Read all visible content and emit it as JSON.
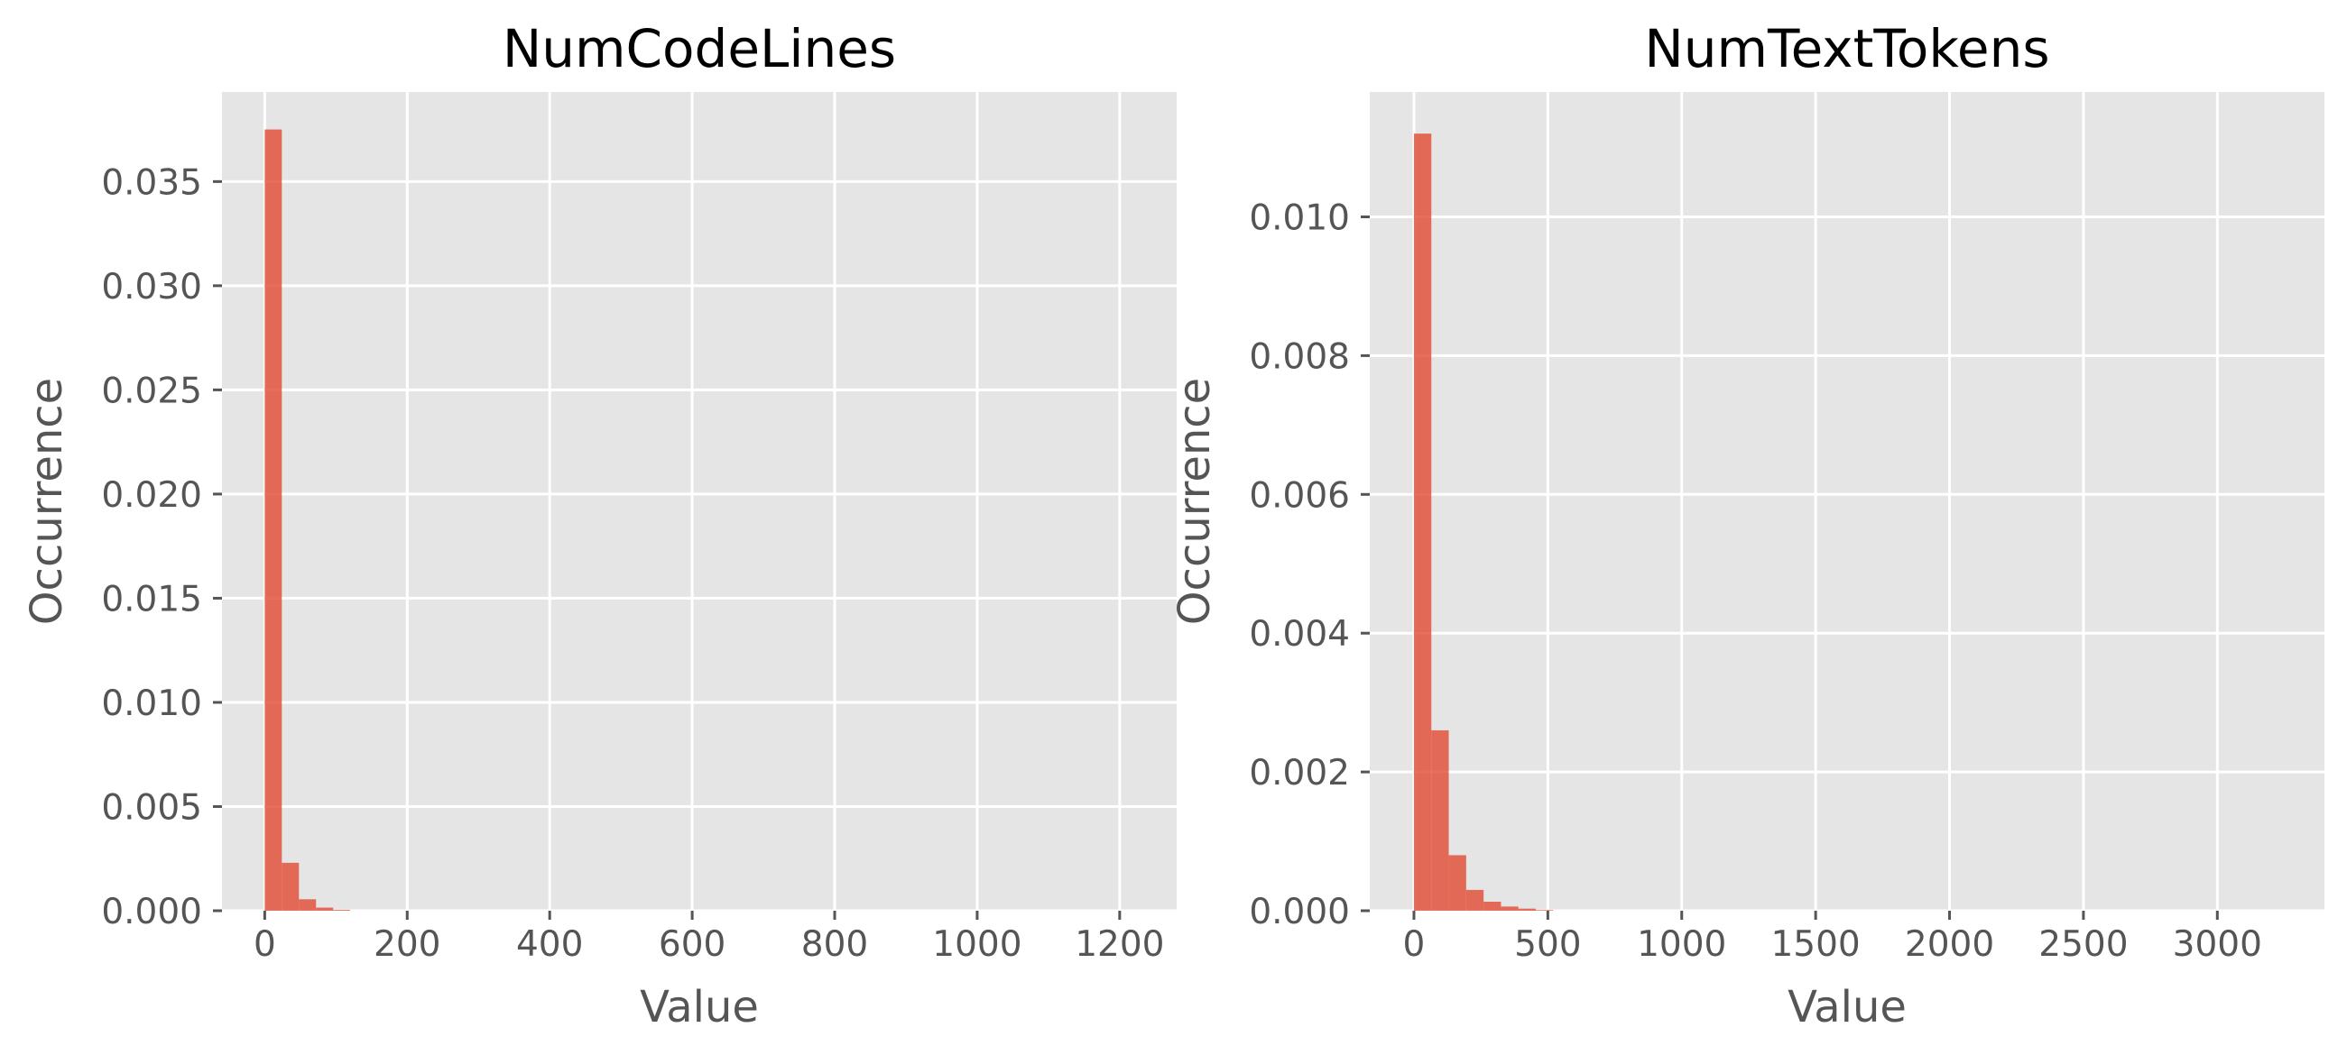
{
  "figure": {
    "background": "#ffffff",
    "plot_background": "#e5e5e5",
    "grid_color": "#ffffff",
    "bar_color": "#e24a33"
  },
  "chart_data": [
    {
      "type": "bar",
      "subtype": "histogram",
      "title": "NumCodeLines",
      "xlabel": "Value",
      "ylabel": "Occurrence",
      "xlim": [
        -60,
        1280
      ],
      "ylim": [
        0,
        0.0393
      ],
      "x_ticks": [
        0,
        200,
        400,
        600,
        800,
        1000,
        1200
      ],
      "x_tick_labels": [
        "0",
        "200",
        "400",
        "600",
        "800",
        "1000",
        "1200"
      ],
      "y_ticks": [
        0,
        0.005,
        0.01,
        0.015,
        0.02,
        0.025,
        0.03,
        0.035
      ],
      "y_tick_labels": [
        "0.000",
        "0.005",
        "0.010",
        "0.015",
        "0.020",
        "0.025",
        "0.030",
        "0.035"
      ],
      "grid": true,
      "bins": [
        {
          "x0": 0,
          "x1": 24,
          "value": 0.0375
        },
        {
          "x0": 24,
          "x1": 48,
          "value": 0.0023
        },
        {
          "x0": 48,
          "x1": 72,
          "value": 0.00055
        },
        {
          "x0": 72,
          "x1": 96,
          "value": 0.00015
        },
        {
          "x0": 96,
          "x1": 120,
          "value": 4e-05
        }
      ]
    },
    {
      "type": "bar",
      "subtype": "histogram",
      "title": "NumTextTokens",
      "xlabel": "Value",
      "ylabel": "Occurrence",
      "xlim": [
        -165,
        3400
      ],
      "ylim": [
        0,
        0.0118
      ],
      "x_ticks": [
        0,
        500,
        1000,
        1500,
        2000,
        2500,
        3000
      ],
      "x_tick_labels": [
        "0",
        "500",
        "1000",
        "1500",
        "2000",
        "2500",
        "3000"
      ],
      "y_ticks": [
        0,
        0.002,
        0.004,
        0.006,
        0.008,
        0.01
      ],
      "y_tick_labels": [
        "0.000",
        "0.002",
        "0.004",
        "0.006",
        "0.008",
        "0.010"
      ],
      "grid": true,
      "bins": [
        {
          "x0": 0,
          "x1": 65,
          "value": 0.0112
        },
        {
          "x0": 65,
          "x1": 130,
          "value": 0.0026
        },
        {
          "x0": 130,
          "x1": 195,
          "value": 0.0008
        },
        {
          "x0": 195,
          "x1": 260,
          "value": 0.0003
        },
        {
          "x0": 260,
          "x1": 325,
          "value": 0.00013
        },
        {
          "x0": 325,
          "x1": 390,
          "value": 6e-05
        },
        {
          "x0": 390,
          "x1": 455,
          "value": 3e-05
        },
        {
          "x0": 455,
          "x1": 520,
          "value": 1e-05
        }
      ]
    }
  ]
}
